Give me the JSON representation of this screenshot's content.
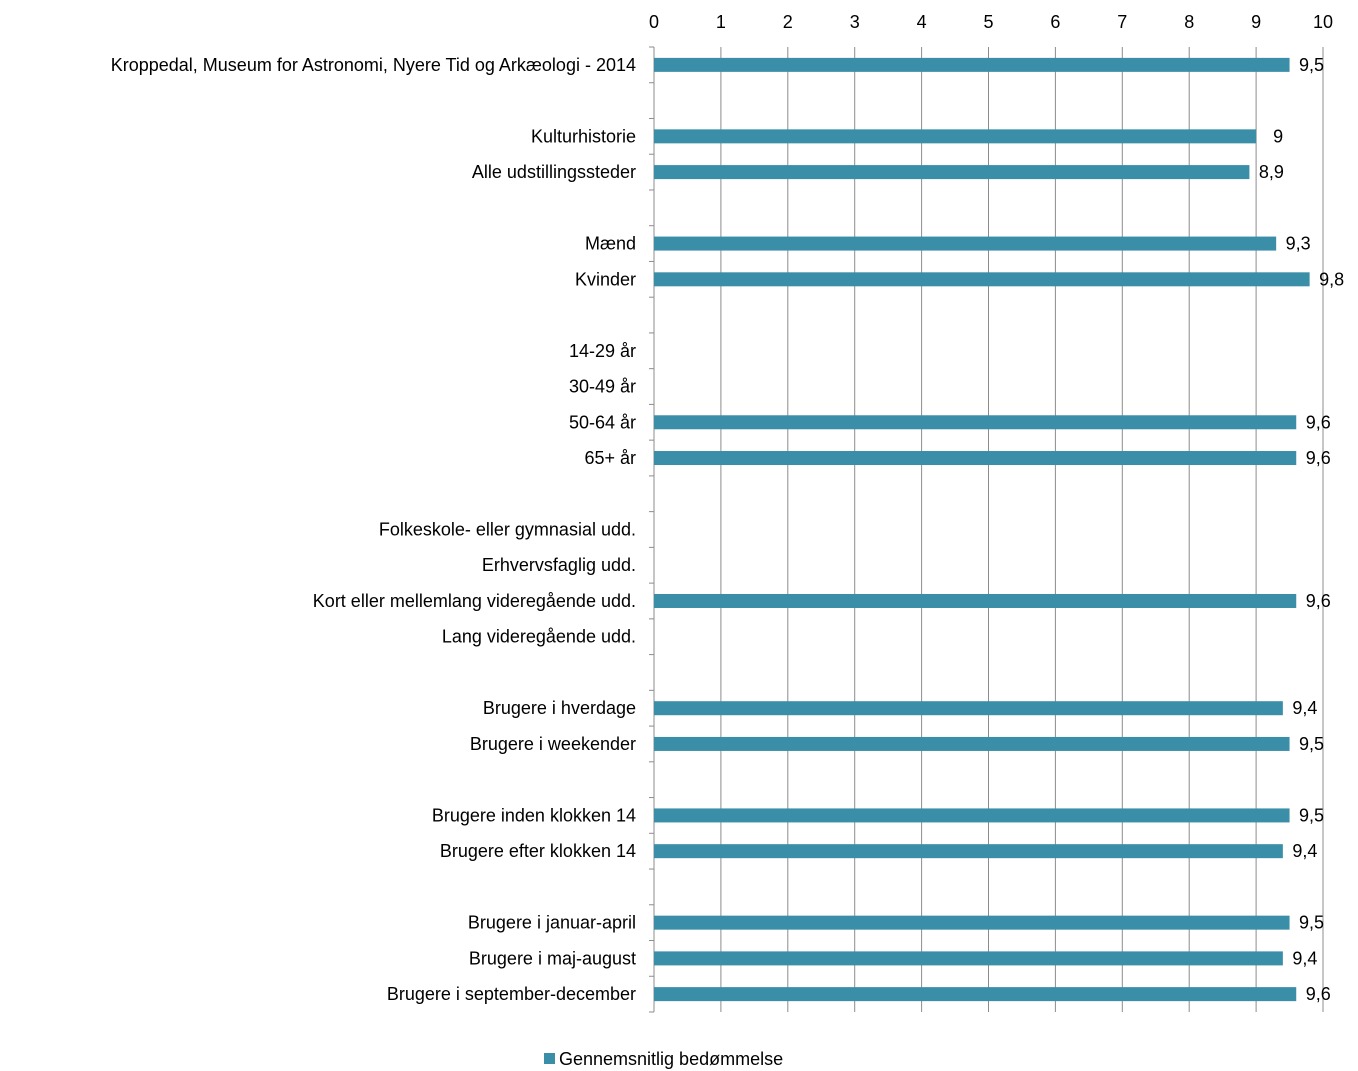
{
  "chart_data": {
    "type": "bar",
    "orientation": "horizontal",
    "x_axis_position": "top",
    "xlim": [
      0,
      10
    ],
    "xticks": [
      0,
      1,
      2,
      3,
      4,
      5,
      6,
      7,
      8,
      9,
      10
    ],
    "grid": true,
    "legend": "bottom",
    "bar_color": "#3a8ea8",
    "series": [
      {
        "name": "Gennemsnitlig bedømmelse",
        "points": [
          {
            "category": "Kroppedal, Museum for Astronomi, Nyere Tid og Arkæologi - 2014",
            "value": 9.5,
            "label": "9,5"
          },
          {
            "category": "",
            "value": null,
            "label": ""
          },
          {
            "category": "Kulturhistorie",
            "value": 9.0,
            "label": "9"
          },
          {
            "category": "Alle udstillingssteder",
            "value": 8.9,
            "label": "8,9"
          },
          {
            "category": "",
            "value": null,
            "label": ""
          },
          {
            "category": "Mænd",
            "value": 9.3,
            "label": "9,3"
          },
          {
            "category": "Kvinder",
            "value": 9.8,
            "label": "9,8"
          },
          {
            "category": "",
            "value": null,
            "label": ""
          },
          {
            "category": "14-29 år",
            "value": null,
            "label": ""
          },
          {
            "category": "30-49 år",
            "value": null,
            "label": ""
          },
          {
            "category": "50-64 år",
            "value": 9.6,
            "label": "9,6"
          },
          {
            "category": "65+ år",
            "value": 9.6,
            "label": "9,6"
          },
          {
            "category": "",
            "value": null,
            "label": ""
          },
          {
            "category": "Folkeskole- eller gymnasial udd.",
            "value": null,
            "label": ""
          },
          {
            "category": "Erhvervsfaglig udd.",
            "value": null,
            "label": ""
          },
          {
            "category": "Kort eller mellemlang videregående udd.",
            "value": 9.6,
            "label": "9,6"
          },
          {
            "category": "Lang videregående udd.",
            "value": null,
            "label": ""
          },
          {
            "category": "",
            "value": null,
            "label": ""
          },
          {
            "category": "Brugere i hverdage",
            "value": 9.4,
            "label": "9,4"
          },
          {
            "category": "Brugere i weekender",
            "value": 9.5,
            "label": "9,5"
          },
          {
            "category": "",
            "value": null,
            "label": ""
          },
          {
            "category": "Brugere inden klokken 14",
            "value": 9.5,
            "label": "9,5"
          },
          {
            "category": "Brugere efter klokken 14",
            "value": 9.4,
            "label": "9,4"
          },
          {
            "category": "",
            "value": null,
            "label": ""
          },
          {
            "category": "Brugere i januar-april",
            "value": 9.5,
            "label": "9,5"
          },
          {
            "category": "Brugere i maj-august",
            "value": 9.4,
            "label": "9,4"
          },
          {
            "category": "Brugere i september-december",
            "value": 9.6,
            "label": "9,6"
          }
        ]
      }
    ]
  }
}
